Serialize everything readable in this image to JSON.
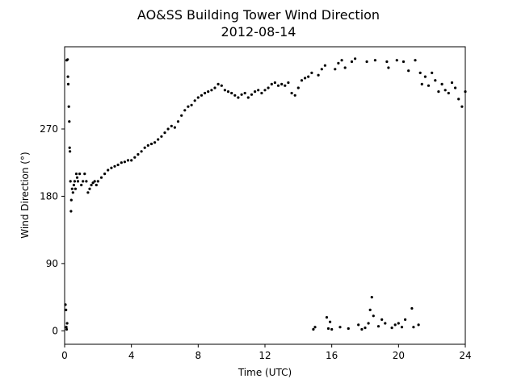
{
  "chart_data": {
    "type": "scatter",
    "title": "AO&SS Building Tower Wind Direction",
    "subtitle": "2012-08-14",
    "xlabel": "Time (UTC)",
    "ylabel": "Wind Direction (°)",
    "xlim": [
      0,
      24
    ],
    "ylim": [
      -18,
      380
    ],
    "xticks": [
      0,
      4,
      8,
      12,
      16,
      20,
      24
    ],
    "yticks": [
      0,
      90,
      180,
      270
    ],
    "grid": false,
    "marker_color": "#000000",
    "series": [
      {
        "values": [
          [
            0.05,
            35
          ],
          [
            0.08,
            28
          ],
          [
            0.1,
            5
          ],
          [
            0.12,
            2
          ],
          [
            0.15,
            10
          ],
          [
            0.12,
            362
          ],
          [
            0.18,
            363
          ],
          [
            0.2,
            340
          ],
          [
            0.22,
            330
          ],
          [
            0.25,
            300
          ],
          [
            0.28,
            280
          ],
          [
            0.3,
            245
          ],
          [
            0.32,
            240
          ],
          [
            0.35,
            200
          ],
          [
            0.38,
            160
          ],
          [
            0.4,
            175
          ],
          [
            0.45,
            190
          ],
          [
            0.5,
            185
          ],
          [
            0.55,
            195
          ],
          [
            0.6,
            200
          ],
          [
            0.65,
            190
          ],
          [
            0.7,
            210
          ],
          [
            0.75,
            205
          ],
          [
            0.8,
            200
          ],
          [
            0.9,
            210
          ],
          [
            1.0,
            195
          ],
          [
            1.1,
            200
          ],
          [
            1.2,
            210
          ],
          [
            1.3,
            200
          ],
          [
            1.4,
            185
          ],
          [
            1.5,
            190
          ],
          [
            1.6,
            195
          ],
          [
            1.7,
            198
          ],
          [
            1.8,
            200
          ],
          [
            1.9,
            195
          ],
          [
            2.0,
            200
          ],
          [
            2.2,
            205
          ],
          [
            2.4,
            210
          ],
          [
            2.6,
            215
          ],
          [
            2.8,
            218
          ],
          [
            3.0,
            220
          ],
          [
            3.2,
            222
          ],
          [
            3.4,
            225
          ],
          [
            3.6,
            226
          ],
          [
            3.8,
            228
          ],
          [
            4.0,
            228
          ],
          [
            4.2,
            232
          ],
          [
            4.4,
            236
          ],
          [
            4.6,
            240
          ],
          [
            4.8,
            245
          ],
          [
            5.0,
            248
          ],
          [
            5.2,
            250
          ],
          [
            5.4,
            252
          ],
          [
            5.6,
            256
          ],
          [
            5.8,
            260
          ],
          [
            6.0,
            265
          ],
          [
            6.2,
            270
          ],
          [
            6.4,
            274
          ],
          [
            6.6,
            272
          ],
          [
            6.8,
            280
          ],
          [
            7.0,
            288
          ],
          [
            7.2,
            295
          ],
          [
            7.4,
            300
          ],
          [
            7.6,
            302
          ],
          [
            7.8,
            308
          ],
          [
            8.0,
            312
          ],
          [
            8.2,
            315
          ],
          [
            8.4,
            318
          ],
          [
            8.6,
            320
          ],
          [
            8.8,
            322
          ],
          [
            9.0,
            325
          ],
          [
            9.2,
            330
          ],
          [
            9.4,
            328
          ],
          [
            9.6,
            322
          ],
          [
            9.8,
            320
          ],
          [
            10.0,
            318
          ],
          [
            10.2,
            315
          ],
          [
            10.4,
            312
          ],
          [
            10.6,
            316
          ],
          [
            10.8,
            318
          ],
          [
            11.0,
            312
          ],
          [
            11.2,
            316
          ],
          [
            11.4,
            320
          ],
          [
            11.6,
            322
          ],
          [
            11.8,
            318
          ],
          [
            12.0,
            322
          ],
          [
            12.2,
            325
          ],
          [
            12.4,
            330
          ],
          [
            12.6,
            332
          ],
          [
            12.8,
            328
          ],
          [
            13.0,
            330
          ],
          [
            13.2,
            328
          ],
          [
            13.4,
            332
          ],
          [
            13.6,
            318
          ],
          [
            13.8,
            315
          ],
          [
            14.0,
            325
          ],
          [
            14.2,
            335
          ],
          [
            14.4,
            338
          ],
          [
            14.6,
            340
          ],
          [
            14.8,
            345
          ],
          [
            14.9,
            2
          ],
          [
            15.0,
            5
          ],
          [
            15.2,
            342
          ],
          [
            15.4,
            350
          ],
          [
            15.6,
            355
          ],
          [
            15.7,
            18
          ],
          [
            15.8,
            3
          ],
          [
            15.9,
            12
          ],
          [
            16.0,
            2
          ],
          [
            16.2,
            350
          ],
          [
            16.4,
            358
          ],
          [
            16.5,
            5
          ],
          [
            16.6,
            362
          ],
          [
            16.8,
            352
          ],
          [
            17.0,
            3
          ],
          [
            17.2,
            360
          ],
          [
            17.4,
            364
          ],
          [
            17.6,
            8
          ],
          [
            17.8,
            2
          ],
          [
            18.0,
            4
          ],
          [
            18.1,
            360
          ],
          [
            18.2,
            10
          ],
          [
            18.3,
            28
          ],
          [
            18.4,
            45
          ],
          [
            18.5,
            20
          ],
          [
            18.6,
            362
          ],
          [
            18.8,
            6
          ],
          [
            19.0,
            15
          ],
          [
            19.2,
            10
          ],
          [
            19.3,
            360
          ],
          [
            19.4,
            352
          ],
          [
            19.6,
            4
          ],
          [
            19.8,
            8
          ],
          [
            19.9,
            362
          ],
          [
            20.0,
            10
          ],
          [
            20.2,
            5
          ],
          [
            20.3,
            360
          ],
          [
            20.4,
            15
          ],
          [
            20.6,
            348
          ],
          [
            20.8,
            30
          ],
          [
            20.9,
            5
          ],
          [
            21.0,
            362
          ],
          [
            21.2,
            8
          ],
          [
            21.3,
            345
          ],
          [
            21.4,
            330
          ],
          [
            21.6,
            340
          ],
          [
            21.8,
            328
          ],
          [
            22.0,
            345
          ],
          [
            22.2,
            335
          ],
          [
            22.4,
            320
          ],
          [
            22.6,
            330
          ],
          [
            22.8,
            322
          ],
          [
            23.0,
            318
          ],
          [
            23.2,
            332
          ],
          [
            23.4,
            325
          ],
          [
            23.6,
            310
          ],
          [
            23.8,
            300
          ],
          [
            24.0,
            320
          ]
        ]
      }
    ]
  }
}
